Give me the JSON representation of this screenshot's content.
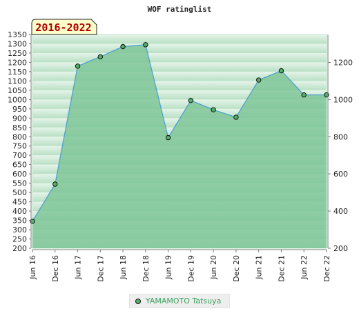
{
  "chart_data": {
    "type": "area",
    "title": "WOF ratinglist",
    "period": "2016-2022",
    "x": [
      "Jun 16",
      "Dec 16",
      "Jun 17",
      "Dec 17",
      "Jun 18",
      "Dec 18",
      "Jun 19",
      "Dec 19",
      "Jun 20",
      "Dec 20",
      "Jun 21",
      "Dec 21",
      "Jun 22",
      "Dec 22"
    ],
    "series": [
      {
        "name": "YAMAMOTO Tatsuya",
        "values": [
          345,
          545,
          1180,
          1230,
          1285,
          1295,
          795,
          995,
          945,
          905,
          1105,
          1155,
          1025,
          1025
        ]
      }
    ],
    "ylim": [
      200,
      1350
    ],
    "left_ticks": [
      200,
      250,
      300,
      350,
      400,
      450,
      500,
      550,
      600,
      650,
      700,
      750,
      800,
      850,
      900,
      950,
      1000,
      1050,
      1100,
      1150,
      1200,
      1250,
      1300,
      1350
    ],
    "right_ticks": [
      200,
      400,
      600,
      800,
      1000,
      1200
    ],
    "legend_position": "bottom",
    "colors": {
      "line": "#4da0d0",
      "fill": "#7cc596",
      "marker": "#55b06c",
      "period_box": "#ffffcc",
      "period_text": "#b00000",
      "legend_text": "#3aa05a"
    }
  }
}
